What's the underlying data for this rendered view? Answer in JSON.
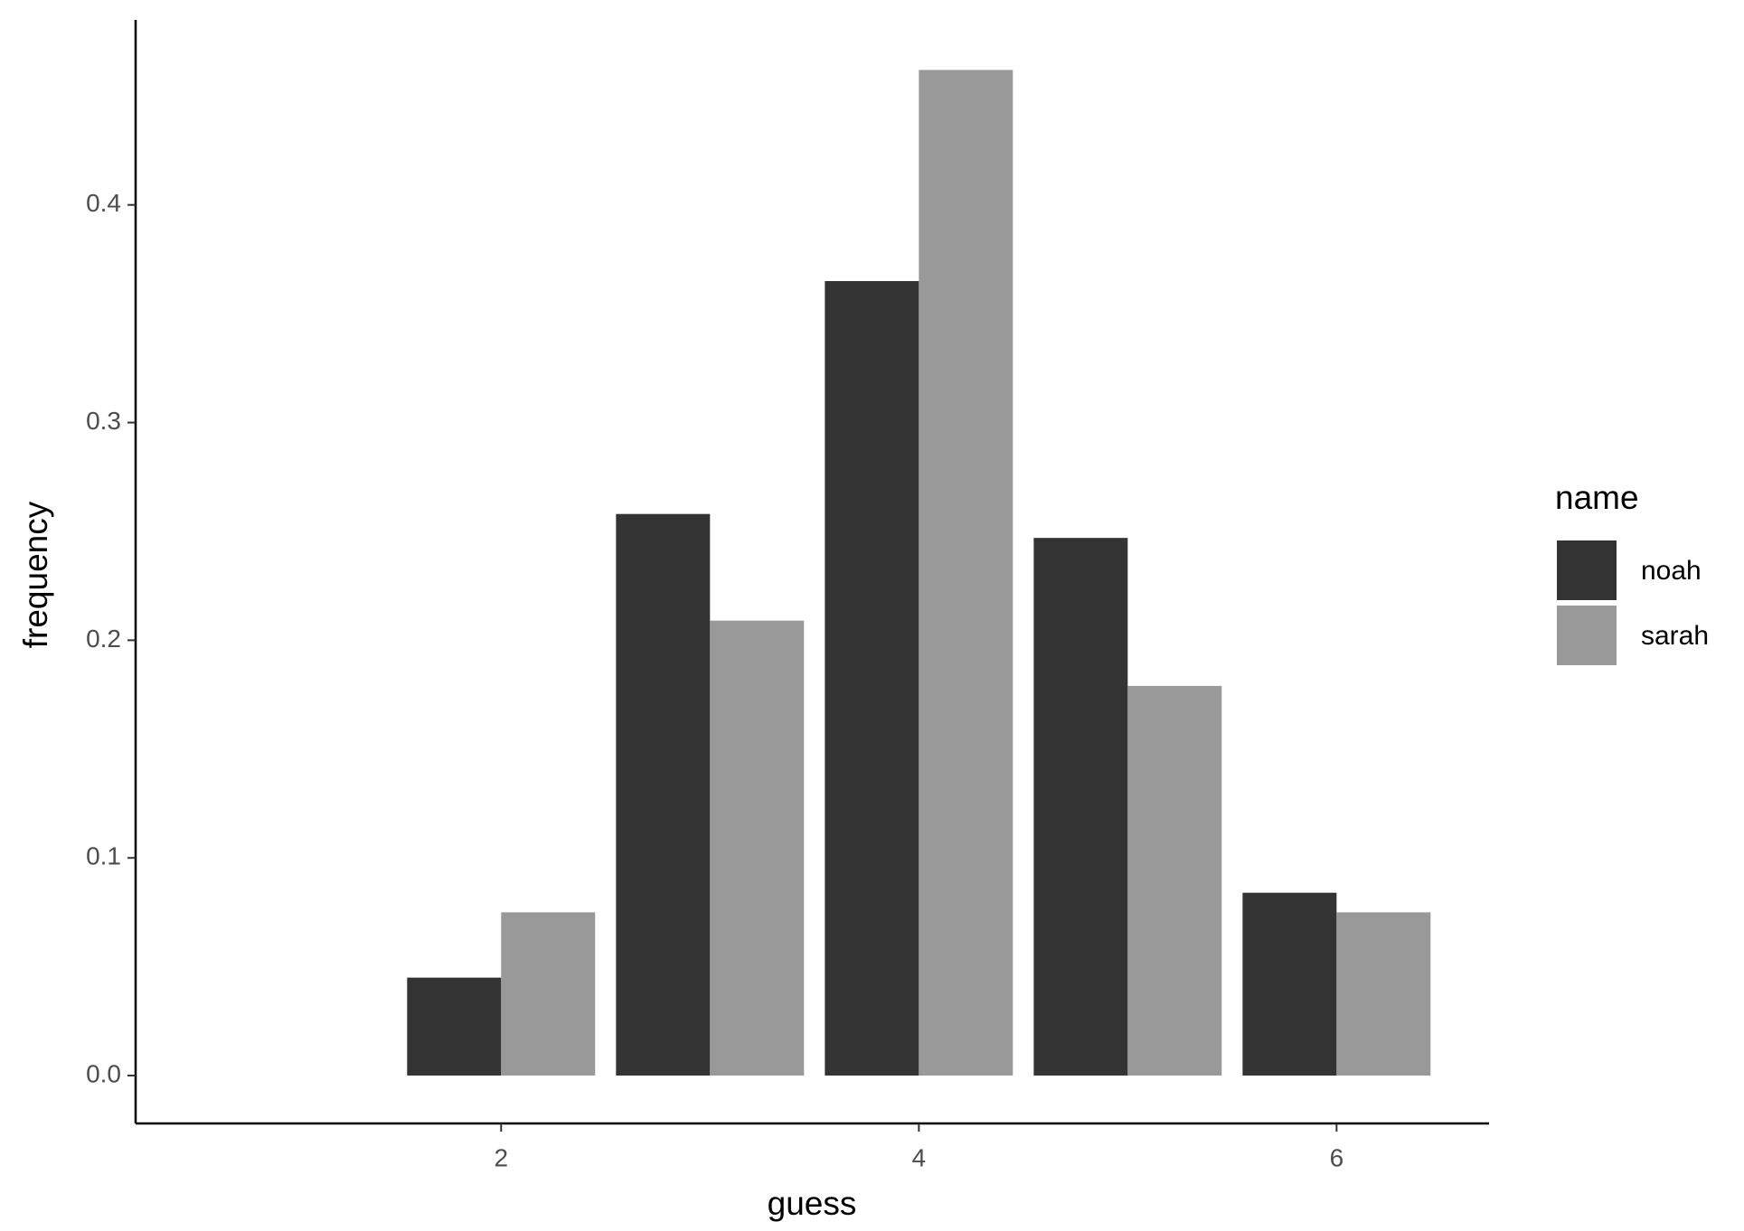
{
  "chart_data": {
    "type": "bar",
    "x_label": "guess",
    "y_label": "frequency",
    "x": [
      2,
      3,
      4,
      5,
      6
    ],
    "series": [
      {
        "name": "noah",
        "color": "#333333",
        "values": [
          0.045,
          0.258,
          0.365,
          0.247,
          0.084
        ]
      },
      {
        "name": "sarah",
        "color": "#999999",
        "values": [
          0.075,
          0.209,
          0.462,
          0.179,
          0.075
        ]
      }
    ],
    "legend_title": "name",
    "legend": "right",
    "xlim": [
      0.25,
      6.73
    ],
    "xticks": [
      2,
      4,
      6
    ],
    "ylim": [
      -0.022,
      0.485
    ],
    "yticks": [
      {
        "value": 0,
        "label": "0.0"
      },
      0.1,
      0.2,
      0.3,
      0.4
    ],
    "bar_width": 0.45,
    "grid": false
  }
}
